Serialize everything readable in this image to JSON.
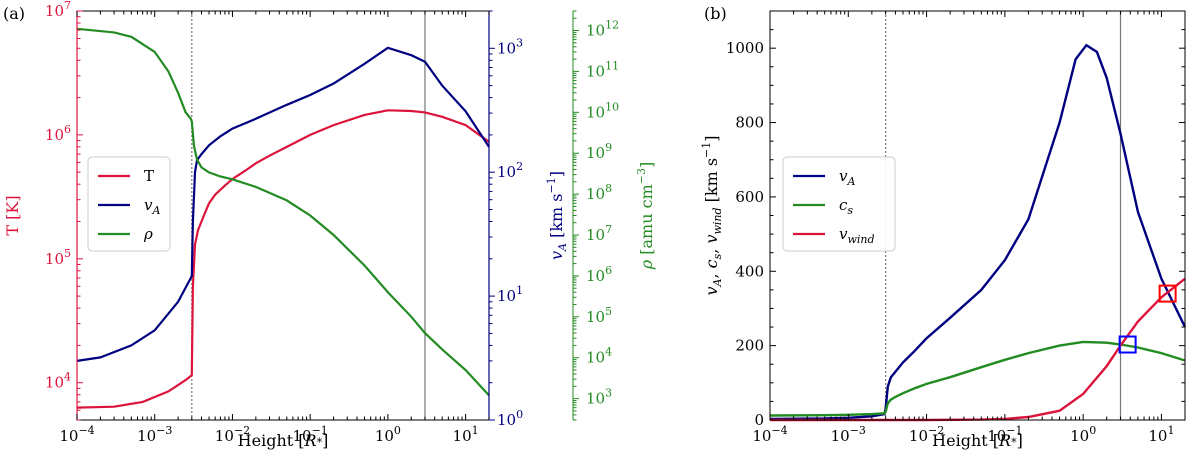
{
  "chart_data": [
    {
      "panel": "(a)",
      "type": "line",
      "xlabel": "Height [R*]",
      "xscale": "log",
      "xlim": [
        0.0001,
        20
      ],
      "x_ticks": [
        "10^-4",
        "10^-3",
        "10^-2",
        "10^-1",
        "10^0",
        "10^1"
      ],
      "left_axis": {
        "label": "T [K]",
        "scale": "log",
        "lim": [
          5000,
          10000000
        ],
        "ticks": [
          "10^4",
          "10^5",
          "10^6",
          "10^7"
        ],
        "color": "#dc143c"
      },
      "right_axis_1": {
        "label": "vA [km s^-1]",
        "scale": "log",
        "lim": [
          1,
          2000
        ],
        "ticks": [
          "10^0",
          "10^1",
          "10^2",
          "10^3"
        ],
        "color": "#000080"
      },
      "right_axis_2": {
        "label": "ρ [amu cm^-3]",
        "scale": "log",
        "lim": [
          300,
          3000000000000
        ],
        "ticks": [
          "10^3",
          "10^4",
          "10^5",
          "10^6",
          "10^7",
          "10^8",
          "10^9",
          "10^10",
          "10^11",
          "10^12"
        ],
        "color": "#228b22"
      },
      "vlines": [
        {
          "x": 0.003,
          "style": "dotted"
        },
        {
          "x": 3.0,
          "style": "solid"
        }
      ],
      "legend": {
        "placement": "center-left",
        "entries": [
          "T",
          "vA",
          "ρ"
        ]
      },
      "series": [
        {
          "name": "T",
          "axis": "left",
          "color": "#dc143c",
          "x": [
            0.0001,
            0.0003,
            0.0007,
            0.0015,
            0.0025,
            0.003,
            0.0031,
            0.0033,
            0.0036,
            0.004,
            0.0045,
            0.005,
            0.006,
            0.008,
            0.01,
            0.015,
            0.02,
            0.03,
            0.05,
            0.1,
            0.2,
            0.5,
            1,
            2,
            3,
            5,
            10,
            20
          ],
          "y": [
            6300,
            6400,
            7000,
            8500,
            10500,
            11500,
            60000,
            130000,
            170000,
            200000,
            240000,
            280000,
            330000,
            390000,
            440000,
            520000,
            590000,
            680000,
            800000,
            1000000,
            1200000,
            1450000,
            1580000,
            1560000,
            1520000,
            1400000,
            1200000,
            880000
          ]
        },
        {
          "name": "vA",
          "axis": "right_1",
          "color": "#000080",
          "x": [
            0.0001,
            0.0002,
            0.0005,
            0.001,
            0.002,
            0.003,
            0.0031,
            0.0033,
            0.0035,
            0.004,
            0.005,
            0.007,
            0.01,
            0.02,
            0.05,
            0.1,
            0.2,
            0.5,
            1,
            2,
            3,
            5,
            10,
            20
          ],
          "y": [
            3.0,
            3.2,
            4.0,
            5.3,
            9.0,
            14.5,
            40,
            100,
            125,
            140,
            165,
            195,
            225,
            270,
            350,
            420,
            520,
            750,
            1010,
            880,
            780,
            500,
            310,
            160
          ]
        },
        {
          "name": "ρ",
          "axis": "right_2",
          "color": "#228b22",
          "x": [
            0.0001,
            0.0003,
            0.0005,
            0.001,
            0.0015,
            0.002,
            0.0025,
            0.0029,
            0.003,
            0.0032,
            0.0035,
            0.004,
            0.005,
            0.007,
            0.01,
            0.02,
            0.05,
            0.1,
            0.2,
            0.5,
            1,
            2,
            3,
            5,
            10,
            20
          ],
          "y": [
            1100000000000.0,
            900000000000.0,
            700000000000.0,
            300000000000.0,
            100000000000.0,
            30000000000.0,
            10000000000.0,
            7000000000.0,
            6000000000.0,
            1500000000.0,
            700000000.0,
            450000000.0,
            340000000.0,
            270000000.0,
            230000000.0,
            150000000.0,
            70000000.0,
            30000000.0,
            10000000.0,
            1800000.0,
            400000.0,
            100000.0,
            40000.0,
            16000.0,
            5000.0,
            1200.0
          ]
        }
      ]
    },
    {
      "panel": "(b)",
      "type": "line",
      "xlabel": "Height [R*]",
      "ylabel": "vA, cs, vwind [km s^-1]",
      "xscale": "log",
      "xlim": [
        0.0001,
        20
      ],
      "ylim": [
        0,
        1100
      ],
      "x_ticks": [
        "10^-4",
        "10^-3",
        "10^-2",
        "10^-1",
        "10^0",
        "10^1"
      ],
      "y_ticks": [
        "0",
        "200",
        "400",
        "600",
        "800",
        "1000"
      ],
      "vlines": [
        {
          "x": 0.003,
          "style": "dotted"
        },
        {
          "x": 3.0,
          "style": "solid"
        }
      ],
      "legend": {
        "placement": "center-left",
        "entries": [
          "vA",
          "cs",
          "vwind"
        ]
      },
      "markers": [
        {
          "shape": "square",
          "color": "#0000ff",
          "x": 3.7,
          "y": 203
        },
        {
          "shape": "square",
          "color": "#ff0000",
          "x": 12.0,
          "y": 340
        }
      ],
      "series": [
        {
          "name": "vA",
          "color": "#000080",
          "x": [
            0.0001,
            0.0005,
            0.001,
            0.002,
            0.0029,
            0.003,
            0.0032,
            0.0035,
            0.004,
            0.005,
            0.007,
            0.01,
            0.02,
            0.05,
            0.1,
            0.2,
            0.5,
            0.8,
            1.1,
            1.5,
            2,
            3,
            5,
            10,
            20
          ],
          "y": [
            3,
            4,
            6,
            10,
            16,
            30,
            90,
            115,
            130,
            155,
            185,
            220,
            275,
            350,
            430,
            540,
            800,
            970,
            1008,
            990,
            920,
            770,
            560,
            380,
            250
          ]
        },
        {
          "name": "cs",
          "color": "#228b22",
          "x": [
            0.0001,
            0.0005,
            0.001,
            0.002,
            0.0029,
            0.003,
            0.0032,
            0.0035,
            0.004,
            0.005,
            0.007,
            0.01,
            0.02,
            0.05,
            0.1,
            0.2,
            0.5,
            1,
            2,
            3,
            5,
            10,
            20
          ],
          "y": [
            12,
            13,
            14,
            16,
            18,
            22,
            45,
            55,
            62,
            72,
            85,
            97,
            115,
            142,
            162,
            180,
            200,
            210,
            208,
            203,
            195,
            180,
            160
          ]
        },
        {
          "name": "vwind",
          "color": "#dc143c",
          "x": [
            0.0001,
            0.01,
            0.05,
            0.1,
            0.2,
            0.5,
            1,
            2,
            3,
            5,
            10,
            20
          ],
          "y": [
            0,
            0,
            1,
            3,
            8,
            25,
            70,
            145,
            200,
            265,
            330,
            380
          ]
        }
      ]
    }
  ]
}
